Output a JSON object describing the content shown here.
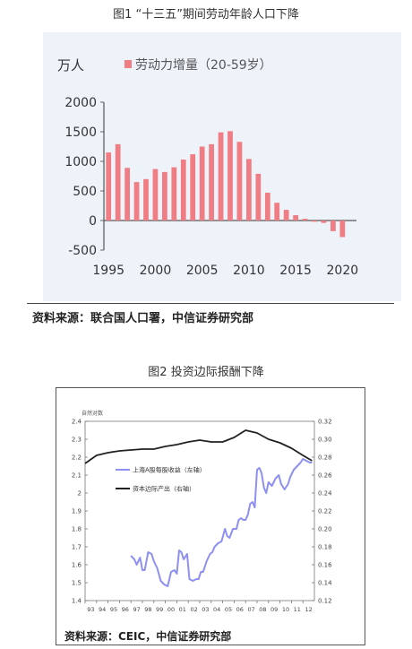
{
  "figure1": {
    "caption": "图1 “十三五”期间劳动年龄人口下降",
    "unit": "万人",
    "source": "资料来源：联合国人口署，中信证券研究部",
    "chart_data": {
      "type": "bar",
      "legend": "劳动力增量（20-59岁）",
      "legend_position": "top",
      "color": "#f07c84",
      "x": [
        1995,
        1996,
        1997,
        1998,
        1999,
        2000,
        2001,
        2002,
        2003,
        2004,
        2005,
        2006,
        2007,
        2008,
        2009,
        2010,
        2011,
        2012,
        2013,
        2014,
        2015,
        2016,
        2017,
        2018,
        2019,
        2020
      ],
      "values": [
        1150,
        1290,
        890,
        650,
        700,
        870,
        820,
        900,
        1030,
        1120,
        1250,
        1290,
        1490,
        1510,
        1330,
        1040,
        790,
        470,
        300,
        180,
        90,
        30,
        -20,
        -40,
        -180,
        -280
      ],
      "xticks": [
        1995,
        2000,
        2005,
        2010,
        2015,
        2020
      ],
      "yticks": [
        -500,
        0,
        500,
        1000,
        1500,
        2000
      ],
      "yticklabels": [
        "-500",
        "0",
        "500",
        "1000",
        "1500",
        "2000"
      ],
      "ylim": [
        -500,
        2000
      ],
      "xlim": [
        1994.5,
        2021.5
      ]
    }
  },
  "figure2": {
    "caption": "图2 投资边际报酬下降",
    "left_axis_title": "自然对数",
    "source": "资料来源：CEIC，中信证券研究部",
    "chart_data": {
      "type": "line",
      "xticks": [
        "93",
        "94",
        "95",
        "96",
        "97",
        "98",
        "99",
        "00",
        "01",
        "02",
        "03",
        "04",
        "05",
        "06",
        "07",
        "08",
        "09",
        "10",
        "11",
        "12"
      ],
      "left_ylim": [
        1.4,
        2.4
      ],
      "left_yticks": [
        "1.4",
        "1.5",
        "1.6",
        "1.7",
        "1.8",
        "1.9",
        "2",
        "2.1",
        "2.2",
        "2.3",
        "2.4"
      ],
      "right_ylim": [
        0.12,
        0.32
      ],
      "right_yticks": [
        "0.12",
        "0.14",
        "0.16",
        "0.18",
        "0.20",
        "0.22",
        "0.24",
        "0.26",
        "0.28",
        "0.30",
        "0.32"
      ],
      "grid": false,
      "series": [
        {
          "name": "上海A股每股收益（左轴）",
          "axis": "left",
          "color": "#8d8ff2",
          "x": [
            1997.0,
            1997.3,
            1997.5,
            1997.8,
            1998.0,
            1998.2,
            1998.5,
            1998.8,
            1999.0,
            1999.3,
            1999.6,
            1999.9,
            2000.2,
            2000.5,
            2000.8,
            2001.0,
            2001.2,
            2001.4,
            2001.6,
            2001.9,
            2002.1,
            2002.4,
            2002.7,
            2002.9,
            2003.1,
            2003.3,
            2003.6,
            2003.9,
            2004.1,
            2004.3,
            2004.6,
            2004.9,
            2005.2,
            2005.4,
            2005.6,
            2005.9,
            2006.2,
            2006.4,
            2006.6,
            2006.8,
            2007.0,
            2007.2,
            2007.4,
            2007.6,
            2007.8,
            2008.0,
            2008.2,
            2008.4,
            2008.6,
            2008.8,
            2009.0,
            2009.3,
            2009.6,
            2009.9,
            2010.1,
            2010.4,
            2010.7,
            2010.9,
            2011.2,
            2011.5,
            2011.8,
            2012.0,
            2012.3,
            2012.6,
            2012.8
          ],
          "y": [
            1.65,
            1.63,
            1.6,
            1.64,
            1.57,
            1.57,
            1.67,
            1.66,
            1.62,
            1.58,
            1.51,
            1.49,
            1.48,
            1.56,
            1.57,
            1.55,
            1.68,
            1.67,
            1.63,
            1.66,
            1.52,
            1.51,
            1.52,
            1.52,
            1.56,
            1.56,
            1.62,
            1.66,
            1.67,
            1.7,
            1.72,
            1.73,
            1.8,
            1.76,
            1.75,
            1.8,
            1.8,
            1.85,
            1.86,
            1.85,
            1.85,
            1.88,
            1.94,
            1.95,
            1.92,
            2.13,
            2.14,
            2.11,
            2.03,
            2.0,
            2.06,
            2.04,
            2.08,
            2.1,
            2.05,
            2.02,
            2.05,
            2.09,
            2.13,
            2.15,
            2.17,
            2.19,
            2.18,
            2.17,
            2.17
          ]
        },
        {
          "name": "资本边际产出（右轴）",
          "axis": "right",
          "color": "#222222",
          "x": [
            1993.0,
            1994.0,
            1995.0,
            1996.0,
            1997.0,
            1998.0,
            1999.0,
            2000.0,
            2001.0,
            2002.0,
            2003.0,
            2004.0,
            2005.0,
            2006.0,
            2007.0,
            2008.0,
            2009.0,
            2010.0,
            2011.0,
            2012.0,
            2012.8
          ],
          "y": [
            0.273,
            0.282,
            0.285,
            0.287,
            0.288,
            0.289,
            0.289,
            0.292,
            0.294,
            0.297,
            0.299,
            0.297,
            0.297,
            0.302,
            0.31,
            0.307,
            0.3,
            0.296,
            0.29,
            0.282,
            0.276
          ]
        }
      ]
    }
  }
}
